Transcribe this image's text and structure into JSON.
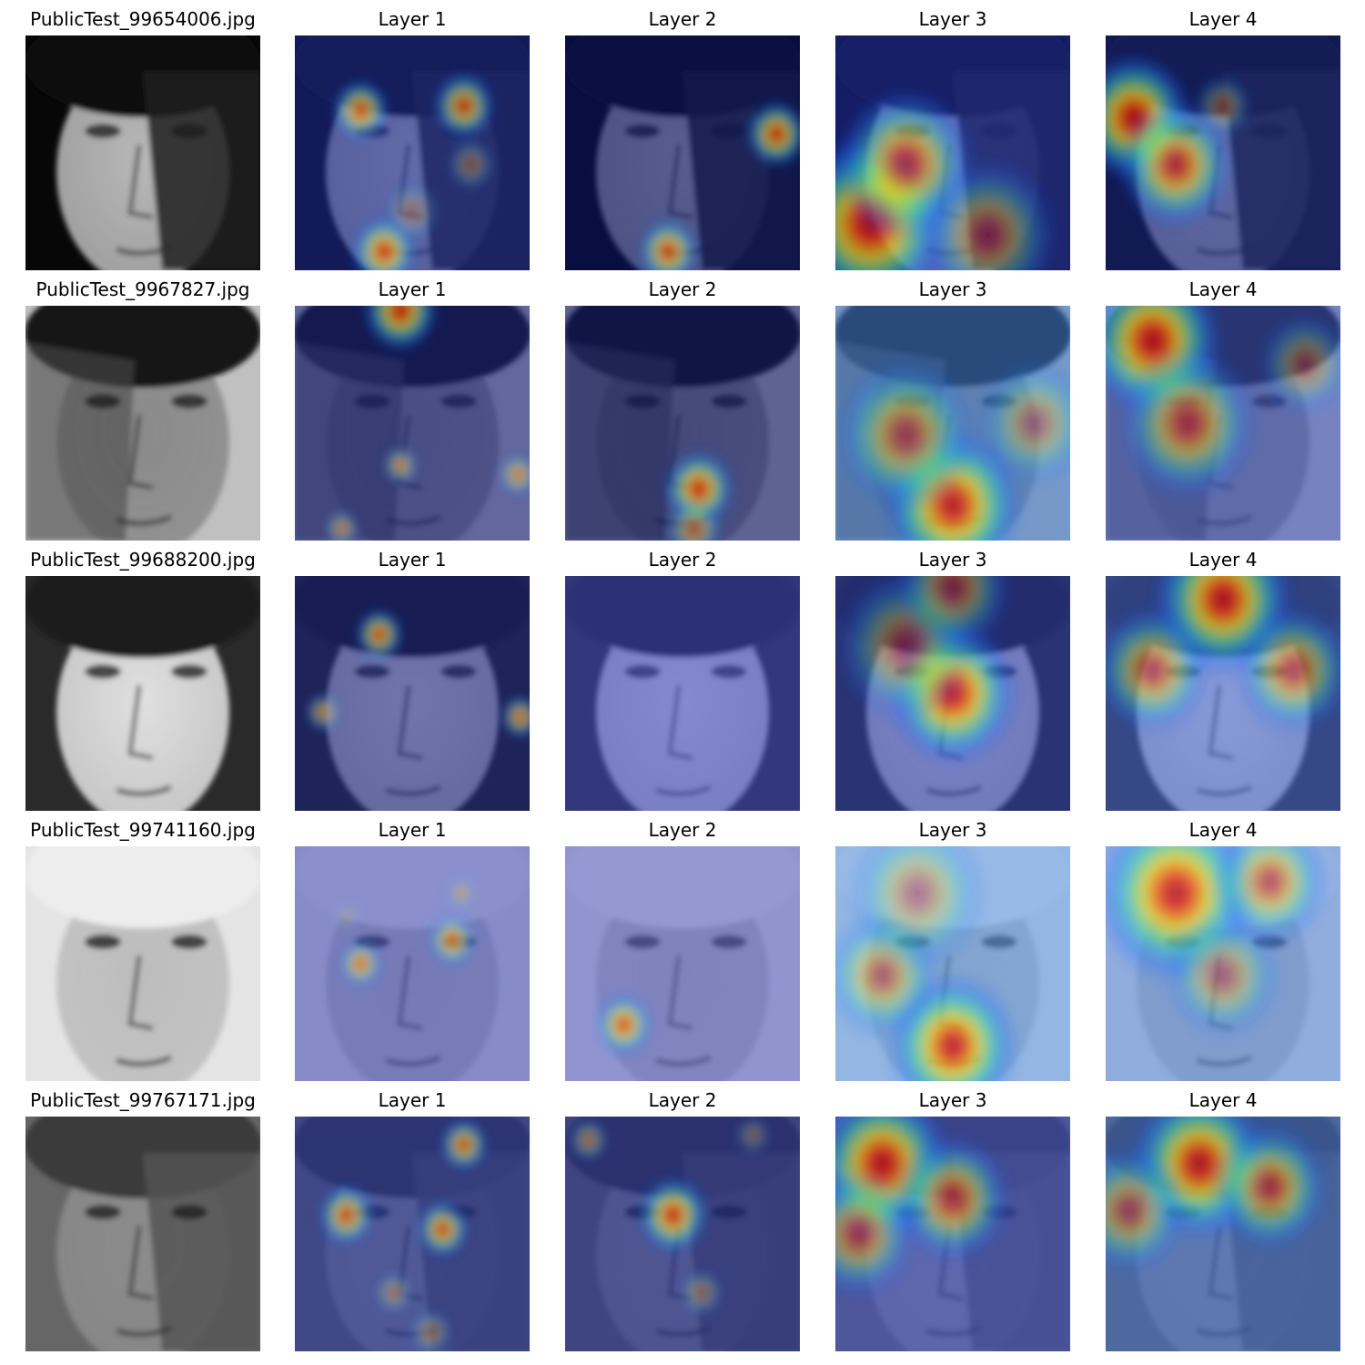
{
  "rows": [
    {
      "filename": "PublicTest_99654006.jpg",
      "face": {
        "bg": "#070707",
        "skin": "#b8b8b8",
        "hair": "#101010",
        "shadow_side": "right",
        "shadow": "#202020"
      },
      "layers": [
        {
          "label": "Layer 1",
          "base": "#1e2a9a",
          "spots": [
            [
              0.28,
              0.32,
              0.12,
              1
            ],
            [
              0.72,
              0.3,
              0.13,
              0.95
            ],
            [
              0.38,
              0.92,
              0.14,
              1
            ],
            [
              0.75,
              0.55,
              0.1,
              0.5
            ],
            [
              0.5,
              0.75,
              0.12,
              0.4
            ]
          ]
        },
        {
          "label": "Layer 2",
          "base": "#0a1470",
          "spots": [
            [
              0.9,
              0.42,
              0.13,
              1
            ],
            [
              0.44,
              0.92,
              0.13,
              0.95
            ]
          ]
        },
        {
          "label": "Layer 3",
          "base": "#2030b0",
          "spots": [
            [
              0.15,
              0.8,
              0.35,
              1
            ],
            [
              0.3,
              0.55,
              0.3,
              0.8
            ],
            [
              0.65,
              0.85,
              0.3,
              0.55
            ]
          ]
        },
        {
          "label": "Layer 4",
          "base": "#1a2a90",
          "spots": [
            [
              0.12,
              0.35,
              0.25,
              1
            ],
            [
              0.3,
              0.55,
              0.25,
              0.85
            ],
            [
              0.5,
              0.3,
              0.12,
              0.5
            ]
          ]
        }
      ]
    },
    {
      "filename": "PublicTest_9967827.jpg",
      "face": {
        "bg": "#c0c0c0",
        "skin": "#8a8a8a",
        "hair": "#141414",
        "shadow_side": "left",
        "shadow": "#4a4a4a"
      },
      "layers": [
        {
          "label": "Layer 1",
          "base": "#141e80",
          "spots": [
            [
              0.45,
              0.02,
              0.16,
              1
            ],
            [
              0.45,
              0.68,
              0.07,
              0.95
            ],
            [
              0.95,
              0.72,
              0.08,
              0.9
            ],
            [
              0.2,
              0.95,
              0.07,
              0.8
            ]
          ]
        },
        {
          "label": "Layer 2",
          "base": "#0c1670",
          "spots": [
            [
              0.57,
              0.78,
              0.15,
              1
            ],
            [
              0.55,
              0.95,
              0.12,
              0.7
            ]
          ]
        },
        {
          "label": "Layer 3",
          "base": "#3a78d0",
          "spots": [
            [
              0.5,
              0.85,
              0.3,
              1
            ],
            [
              0.3,
              0.55,
              0.3,
              0.65
            ],
            [
              0.85,
              0.5,
              0.25,
              0.45
            ]
          ]
        },
        {
          "label": "Layer 4",
          "base": "#3a50c0",
          "spots": [
            [
              0.2,
              0.15,
              0.3,
              1
            ],
            [
              0.35,
              0.5,
              0.3,
              0.7
            ],
            [
              0.85,
              0.25,
              0.2,
              0.45
            ]
          ]
        }
      ]
    },
    {
      "filename": "PublicTest_99688200.jpg",
      "face": {
        "bg": "#2a2a2a",
        "skin": "#e0e0e0",
        "hair": "#1a1a1a",
        "shadow_side": "none",
        "shadow": "#2a2a2a"
      },
      "layers": [
        {
          "label": "Layer 1",
          "base": "#141e80",
          "spots": [
            [
              0.36,
              0.25,
              0.1,
              1
            ],
            [
              0.12,
              0.58,
              0.07,
              0.9
            ],
            [
              0.96,
              0.6,
              0.08,
              1
            ]
          ]
        },
        {
          "label": "Layer 2",
          "base": "#3a44c0",
          "spots": []
        },
        {
          "label": "Layer 3",
          "base": "#2a3ab0",
          "spots": [
            [
              0.5,
              0.5,
              0.28,
              1
            ],
            [
              0.3,
              0.3,
              0.3,
              0.5
            ],
            [
              0.5,
              0.05,
              0.25,
              0.55
            ]
          ]
        },
        {
          "label": "Layer 4",
          "base": "#4060d0",
          "spots": [
            [
              0.5,
              0.1,
              0.3,
              1
            ],
            [
              0.2,
              0.4,
              0.25,
              0.7
            ],
            [
              0.8,
              0.4,
              0.25,
              0.7
            ]
          ]
        }
      ]
    },
    {
      "filename": "PublicTest_99741160.jpg",
      "face": {
        "bg": "#e4e4e4",
        "skin": "#bdbdbd",
        "hair": "#ededed",
        "shadow_side": "none",
        "shadow": "#d0d0d0"
      },
      "layers": [
        {
          "label": "Layer 1",
          "base": "#3a44b0",
          "spots": [
            [
              0.28,
              0.5,
              0.09,
              1
            ],
            [
              0.67,
              0.4,
              0.1,
              1
            ],
            [
              0.71,
              0.2,
              0.06,
              0.7
            ],
            [
              0.22,
              0.3,
              0.05,
              0.5
            ]
          ]
        },
        {
          "label": "Layer 2",
          "base": "#4a54c0",
          "spots": [
            [
              0.25,
              0.76,
              0.12,
              1
            ]
          ]
        },
        {
          "label": "Layer 3",
          "base": "#5090e0",
          "spots": [
            [
              0.5,
              0.85,
              0.28,
              1
            ],
            [
              0.2,
              0.55,
              0.25,
              0.6
            ],
            [
              0.35,
              0.2,
              0.3,
              0.45
            ]
          ]
        },
        {
          "label": "Layer 4",
          "base": "#4a80d8",
          "spots": [
            [
              0.3,
              0.2,
              0.35,
              1
            ],
            [
              0.7,
              0.15,
              0.25,
              0.7
            ],
            [
              0.5,
              0.55,
              0.25,
              0.5
            ]
          ]
        }
      ]
    },
    {
      "filename": "PublicTest_99767171.jpg",
      "face": {
        "bg": "#666666",
        "skin": "#8c8c8c",
        "hair": "#3a3a3a",
        "shadow_side": "right",
        "shadow": "#555555"
      },
      "layers": [
        {
          "label": "Layer 1",
          "base": "#2030a0",
          "spots": [
            [
              0.72,
              0.12,
              0.1,
              1
            ],
            [
              0.22,
              0.42,
              0.12,
              0.95
            ],
            [
              0.63,
              0.48,
              0.11,
              1
            ],
            [
              0.42,
              0.75,
              0.08,
              0.6
            ],
            [
              0.58,
              0.92,
              0.09,
              0.55
            ]
          ]
        },
        {
          "label": "Layer 2",
          "base": "#1e2a98",
          "spots": [
            [
              0.46,
              0.42,
              0.15,
              1
            ],
            [
              0.1,
              0.1,
              0.08,
              0.7
            ],
            [
              0.8,
              0.08,
              0.07,
              0.5
            ],
            [
              0.58,
              0.75,
              0.09,
              0.55
            ]
          ]
        },
        {
          "label": "Layer 3",
          "base": "#3a4ac8",
          "spots": [
            [
              0.2,
              0.2,
              0.3,
              1
            ],
            [
              0.5,
              0.35,
              0.25,
              0.75
            ],
            [
              0.1,
              0.5,
              0.25,
              0.65
            ]
          ]
        },
        {
          "label": "Layer 4",
          "base": "#3a6cd0",
          "spots": [
            [
              0.4,
              0.2,
              0.3,
              1
            ],
            [
              0.7,
              0.3,
              0.25,
              0.75
            ],
            [
              0.1,
              0.4,
              0.25,
              0.6
            ]
          ]
        }
      ]
    }
  ]
}
